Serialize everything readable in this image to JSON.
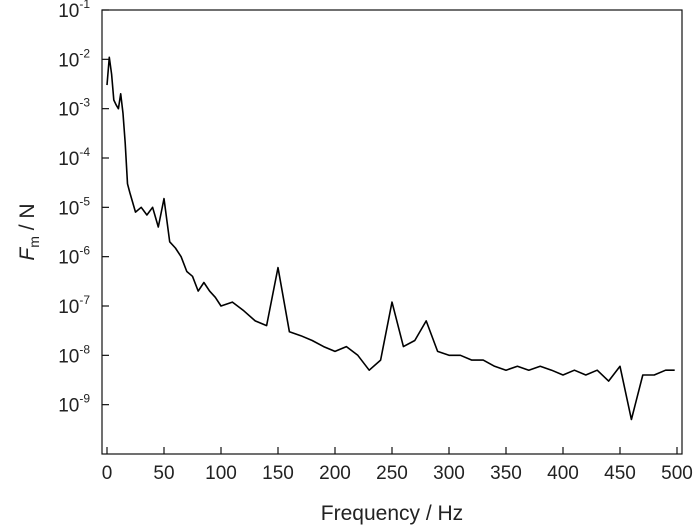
{
  "chart_data": {
    "type": "line",
    "xlabel": "Frequency / Hz",
    "ylabel": {
      "symbol": "F",
      "subscript": "m",
      "unit": " / N"
    },
    "xlim": [
      0,
      500
    ],
    "ylim_log10": [
      -10,
      -1
    ],
    "y_scale": "log",
    "grid": false,
    "legend": "none",
    "line_color": "#000000",
    "x_ticks": [
      "0",
      "50",
      "100",
      "150",
      "200",
      "250",
      "300",
      "350",
      "400",
      "450",
      "500"
    ],
    "y_ticks": [
      {
        "base": "10",
        "exp": "-1"
      },
      {
        "base": "10",
        "exp": "-2"
      },
      {
        "base": "10",
        "exp": "-3"
      },
      {
        "base": "10",
        "exp": "-4"
      },
      {
        "base": "10",
        "exp": "-5"
      },
      {
        "base": "10",
        "exp": "-6"
      },
      {
        "base": "10",
        "exp": "-7"
      },
      {
        "base": "10",
        "exp": "-8"
      },
      {
        "base": "10",
        "exp": "-9"
      }
    ],
    "series": [
      {
        "x": [
          0,
          2,
          4,
          6,
          8,
          10,
          12,
          14,
          16,
          18,
          20,
          25,
          30,
          35,
          40,
          45,
          50,
          55,
          60,
          65,
          70,
          75,
          80,
          85,
          90,
          95,
          100,
          110,
          120,
          130,
          140,
          150,
          160,
          170,
          180,
          190,
          200,
          210,
          220,
          230,
          240,
          250,
          260,
          270,
          280,
          290,
          300,
          310,
          320,
          330,
          340,
          350,
          360,
          370,
          380,
          390,
          400,
          410,
          420,
          430,
          440,
          450,
          460,
          470,
          480,
          490,
          498
        ],
        "y": [
          0.003,
          0.011,
          0.005,
          0.0015,
          0.0012,
          0.001,
          0.002,
          0.0008,
          0.0002,
          3e-05,
          2e-05,
          8e-06,
          1e-05,
          7e-06,
          1e-05,
          4e-06,
          1.5e-05,
          2e-06,
          1.5e-06,
          1e-06,
          5e-07,
          4e-07,
          2e-07,
          3e-07,
          2e-07,
          1.5e-07,
          1e-07,
          1.2e-07,
          8e-08,
          5e-08,
          4e-08,
          6e-07,
          3e-08,
          2.5e-08,
          2e-08,
          1.5e-08,
          1.2e-08,
          1.5e-08,
          1e-08,
          5e-09,
          8e-09,
          1.2e-07,
          1.5e-08,
          2e-08,
          5e-08,
          1.2e-08,
          1e-08,
          1e-08,
          8e-09,
          8e-09,
          6e-09,
          5e-09,
          6e-09,
          5e-09,
          6e-09,
          5e-09,
          4e-09,
          5e-09,
          4e-09,
          5e-09,
          3e-09,
          6e-09,
          5e-10,
          4e-09,
          4e-09,
          5e-09,
          5e-09
        ]
      }
    ]
  }
}
